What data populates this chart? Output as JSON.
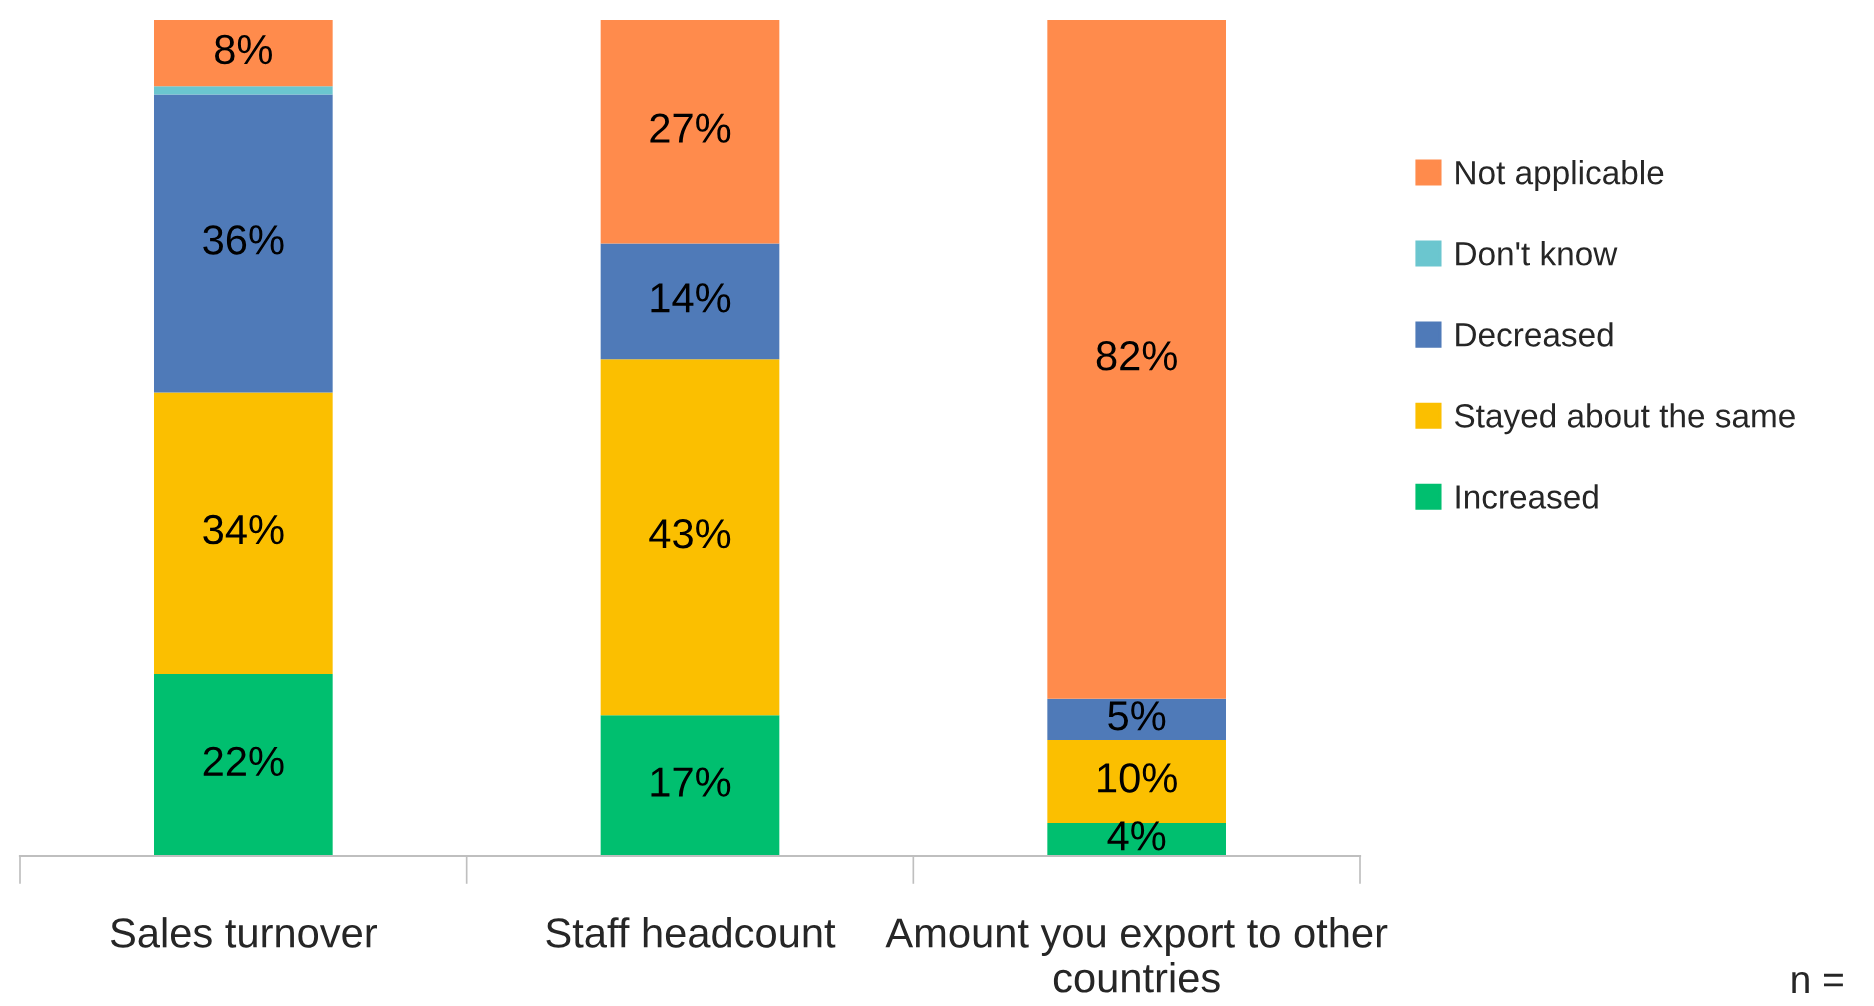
{
  "chart_data": {
    "type": "bar",
    "stacked": true,
    "categories": [
      "Sales turnover",
      "Staff headcount",
      "Amount you export to other countries"
    ],
    "series": [
      {
        "name": "Increased",
        "color": "#00bf6f",
        "values": [
          22,
          17,
          4
        ],
        "value_labels": [
          "22%",
          "17%",
          "4%"
        ]
      },
      {
        "name": "Stayed about the same",
        "color": "#fbbf00",
        "values": [
          34,
          43,
          10
        ],
        "value_labels": [
          "34%",
          "43%",
          "10%"
        ]
      },
      {
        "name": "Decreased",
        "color": "#4f7ab8",
        "values": [
          36,
          14,
          5
        ],
        "value_labels": [
          "36%",
          "14%",
          "5%"
        ]
      },
      {
        "name": "Don't know",
        "color": "#6bc6cf",
        "values": [
          1,
          0,
          0
        ],
        "value_labels": [
          null,
          null,
          null
        ]
      },
      {
        "name": "Not applicable",
        "color": "#ff8b4c",
        "values": [
          8,
          27,
          82
        ],
        "value_labels": [
          "8%",
          "27%",
          "82%"
        ]
      }
    ],
    "ylim": [
      0,
      101
    ],
    "tick_labels": "x",
    "legend": "right",
    "grid": false,
    "annotations": [
      "n ="
    ]
  }
}
